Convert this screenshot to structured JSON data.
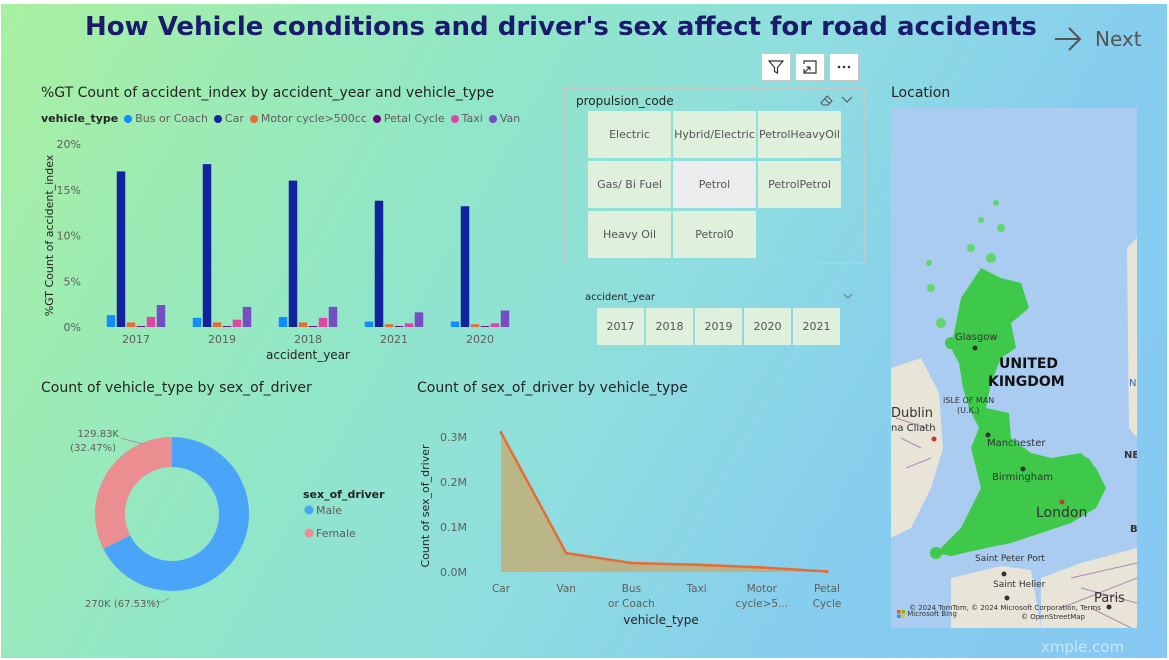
{
  "page": {
    "title": "How Vehicle conditions and driver's sex affect for road accidents",
    "next_label": "Next",
    "watermark": "xmple.com"
  },
  "toolbar": {
    "icons": [
      "filter-icon",
      "focus-mode-icon",
      "more-options-icon"
    ]
  },
  "bar_visual": {
    "title": "%GT Count of accident_index by accident_year and vehicle_type",
    "legend_title": "vehicle_type",
    "y_ticks": [
      "20%",
      "15%",
      "10%",
      "5%",
      "0%"
    ]
  },
  "donut_visual": {
    "title": "Count of vehicle_type by sex_of_driver",
    "legend_title": "sex_of_driver",
    "label_female_value": "129.83K",
    "label_female_pct": "(32.47%)",
    "label_male": "270K (67.53%)"
  },
  "line_visual": {
    "title": "Count of sex_of_driver by vehicle_type"
  },
  "propulsion_slicer": {
    "title": "propulsion_code",
    "options": [
      [
        "Electric"
      ],
      [
        "Hybrid/",
        "Electric"
      ],
      [
        "PetrolHeavy",
        "Oil"
      ],
      [
        "Gas/ Bi Fuel"
      ],
      [
        "Petrol"
      ],
      [
        "PetrolPetrol"
      ],
      [
        "Heavy Oil"
      ],
      [
        "Petrol0"
      ]
    ],
    "selected": "Petrol"
  },
  "year_slicer": {
    "title": "accident_year",
    "options": [
      "2017",
      "2018",
      "2019",
      "2020",
      "2021"
    ]
  },
  "map_visual": {
    "title": "Location",
    "labels": {
      "country1": "UNITED",
      "country2": "KINGDOM",
      "glasgow": "Glasgow",
      "isle1": "ISLE OF MAN",
      "isle2": "(U.K.)",
      "dublin": "Dublin",
      "clíath": "na Cliath",
      "manchester": "Manchester",
      "birmingham": "Birmingham",
      "london": "London",
      "stpeter": "Saint Peter Port",
      "sthelier": "Saint Helier",
      "paris": "Paris",
      "n1": "N",
      "ne": "NE",
      "b": "B",
      "copyright": "© 2024 TomTom, © 2024 Microsoft Corporation, Terms",
      "osm": "© OpenStreetMap",
      "bing": "Microsoft Bing"
    }
  },
  "chart_data": [
    {
      "type": "bar",
      "title": "%GT Count of accident_index by accident_year and vehicle_type",
      "xlabel": "accident_year",
      "ylabel": "%GT Count of accident_index",
      "ylim": [
        0,
        20
      ],
      "categories": [
        "2017",
        "2019",
        "2018",
        "2021",
        "2020"
      ],
      "series": [
        {
          "name": "Bus or Coach",
          "color": "#118dff",
          "values": [
            1.3,
            1.0,
            1.1,
            0.6,
            0.6
          ]
        },
        {
          "name": "Car",
          "color": "#12239e",
          "values": [
            17.0,
            17.8,
            16.0,
            13.8,
            13.2
          ]
        },
        {
          "name": "Motor cycle>500cc",
          "color": "#e66c37",
          "values": [
            0.5,
            0.5,
            0.5,
            0.3,
            0.3
          ]
        },
        {
          "name": "Petal Cycle",
          "color": "#6b007b",
          "values": [
            0.1,
            0.1,
            0.1,
            0.1,
            0.1
          ]
        },
        {
          "name": "Taxi",
          "color": "#e044a7",
          "values": [
            1.1,
            0.8,
            1.0,
            0.4,
            0.4
          ]
        },
        {
          "name": "Van",
          "color": "#744ec2",
          "values": [
            2.4,
            2.2,
            2.2,
            1.6,
            1.8
          ]
        }
      ],
      "grid": false,
      "legend_position": "top-left"
    },
    {
      "type": "pie",
      "title": "Count of vehicle_type by sex_of_driver",
      "legend_title": "sex_of_driver",
      "slices": [
        {
          "label": "Male",
          "value": 270000,
          "pct": 67.53,
          "color": "#4aa4f8"
        },
        {
          "label": "Female",
          "value": 129830,
          "pct": 32.47,
          "color": "#ea8e91"
        }
      ],
      "donut": true,
      "legend_position": "right"
    },
    {
      "type": "area",
      "title": "Count of sex_of_driver by vehicle_type",
      "xlabel": "vehicle_type",
      "ylabel": "Count of sex_of_driver",
      "categories": [
        "Car",
        "Van",
        "Bus or Coach",
        "Taxi",
        "Motor cycle>5...",
        "Petal Cycle"
      ],
      "y_ticks": [
        "0.3M",
        "0.2M",
        "0.1M",
        "0.0M"
      ],
      "ylim": [
        0,
        0.32
      ],
      "values": [
        0.31,
        0.042,
        0.02,
        0.016,
        0.01,
        0.001
      ],
      "color": "#e66c37",
      "fill_color": "#c8a86a",
      "grid": false
    }
  ]
}
